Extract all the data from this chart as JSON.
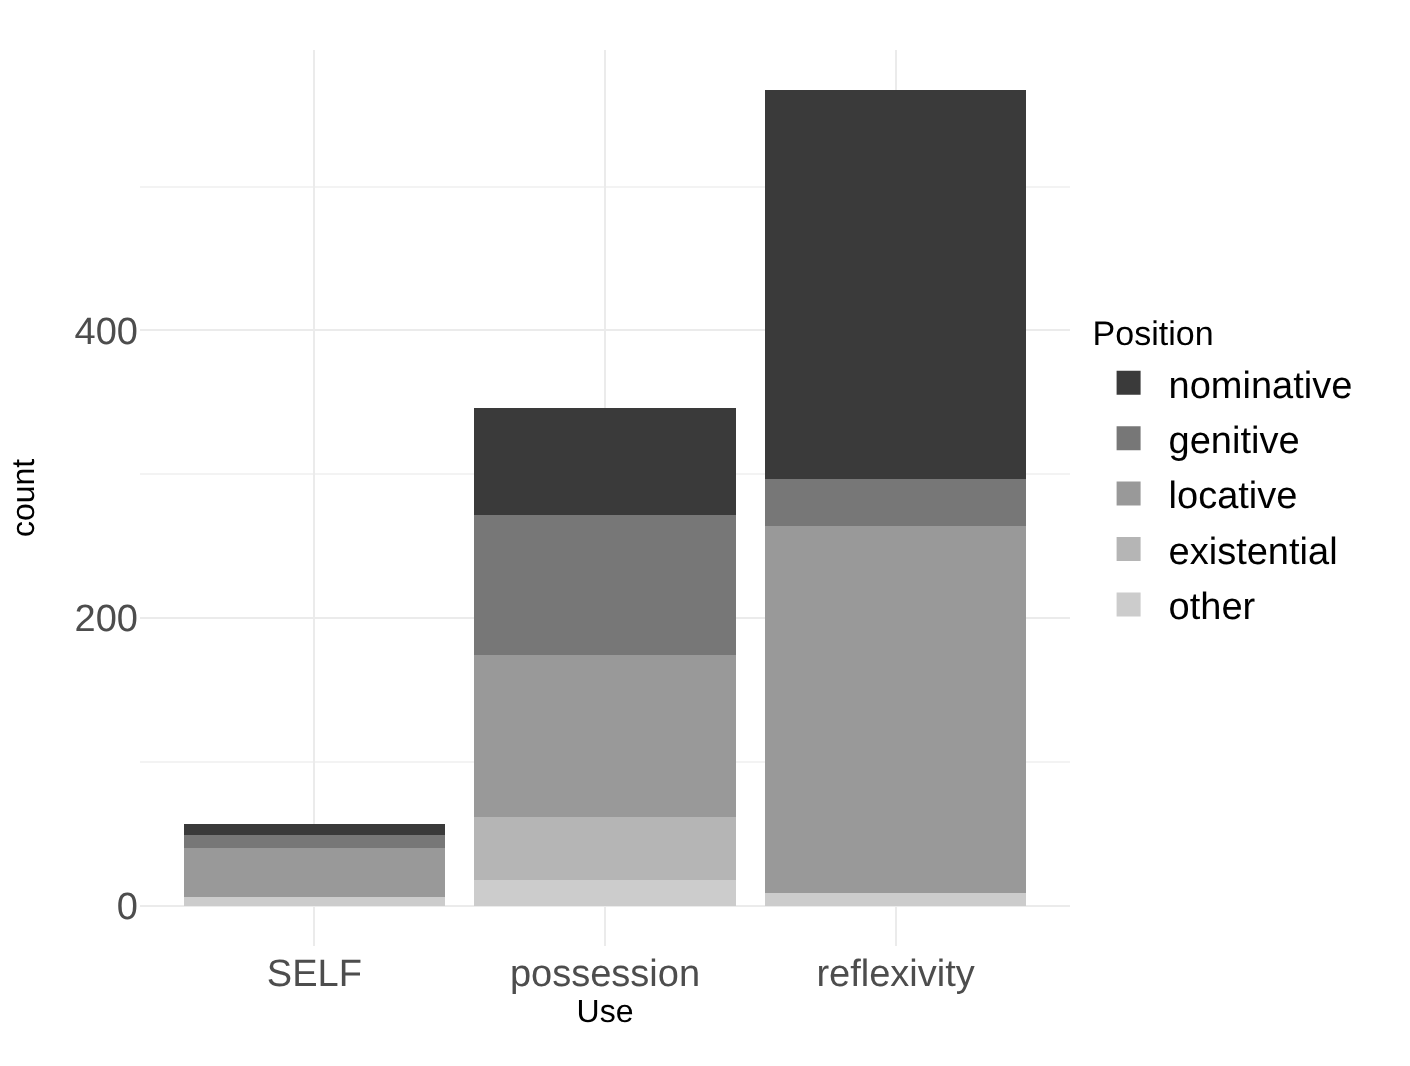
{
  "chart_data": {
    "type": "bar",
    "stacked": true,
    "xlabel": "Use",
    "ylabel": "count",
    "legend_title": "Position",
    "legend": "right",
    "grid": true,
    "categories": [
      "SELF",
      "possession",
      "reflexivity"
    ],
    "ylim": [
      -28,
      595
    ],
    "yticks": [
      0,
      200,
      400
    ],
    "series": [
      {
        "name": "other",
        "color": "#cccccc",
        "values": [
          6,
          18,
          9
        ]
      },
      {
        "name": "existential",
        "color": "#b5b5b5",
        "values": [
          0,
          44,
          0
        ]
      },
      {
        "name": "locative",
        "color": "#999999",
        "values": [
          34,
          112,
          255
        ]
      },
      {
        "name": "genitive",
        "color": "#777777",
        "values": [
          9,
          98,
          33
        ]
      },
      {
        "name": "nominative",
        "color": "#3a3a3a",
        "values": [
          8,
          74,
          270
        ]
      }
    ]
  }
}
